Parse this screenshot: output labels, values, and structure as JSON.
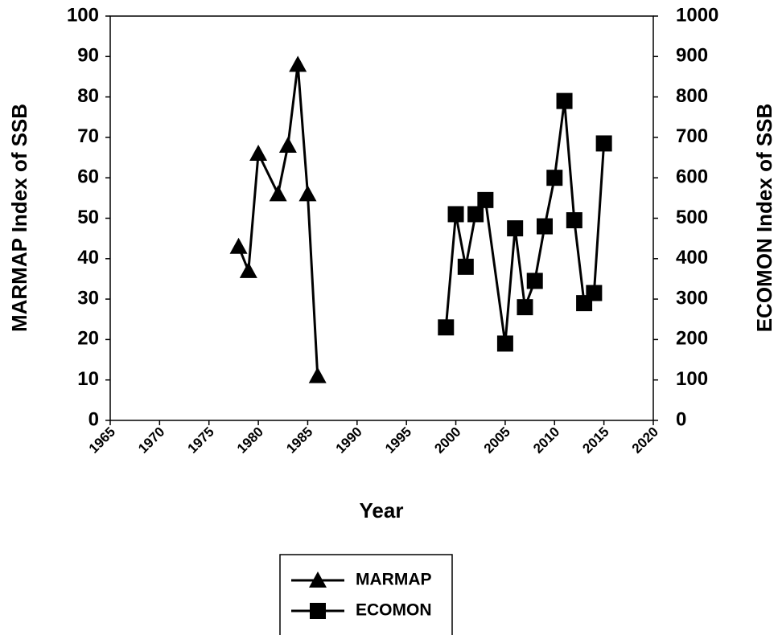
{
  "chart_data": {
    "type": "line",
    "x_label": "Year",
    "y_label": "MARMAP Index of SSB",
    "y2_label": "ECOMON Index of SSB",
    "xlim": [
      1965,
      2020
    ],
    "xticks": [
      1965,
      1970,
      1975,
      1980,
      1985,
      1990,
      1995,
      2000,
      2005,
      2010,
      2015,
      2020
    ],
    "ylim": [
      0,
      100
    ],
    "yticks": [
      0,
      10,
      20,
      30,
      40,
      50,
      60,
      70,
      80,
      90,
      100
    ],
    "y2lim": [
      0,
      1000
    ],
    "y2ticks": [
      0,
      100,
      200,
      300,
      400,
      500,
      600,
      700,
      800,
      900,
      1000
    ],
    "grid": false,
    "legend": "bottom",
    "series": [
      {
        "name": "MARMAP",
        "color": "#000000",
        "marker": "triangle",
        "x": [
          1978,
          1979,
          1980,
          1982,
          1983,
          1984,
          1985,
          1986
        ],
        "values": [
          43,
          37,
          66,
          56,
          68,
          88,
          56,
          11
        ]
      },
      {
        "name": "ECOMON",
        "color": "#000000",
        "marker": "square",
        "axis": "y2",
        "x": [
          1999,
          2000,
          2001,
          2002,
          2003,
          2005,
          2006,
          2007,
          2008,
          2009,
          2010,
          2011,
          2012,
          2013,
          2014,
          2015
        ],
        "values": [
          230,
          510,
          380,
          510,
          545,
          190,
          475,
          280,
          345,
          480,
          600,
          790,
          495,
          290,
          315,
          685
        ]
      }
    ]
  }
}
